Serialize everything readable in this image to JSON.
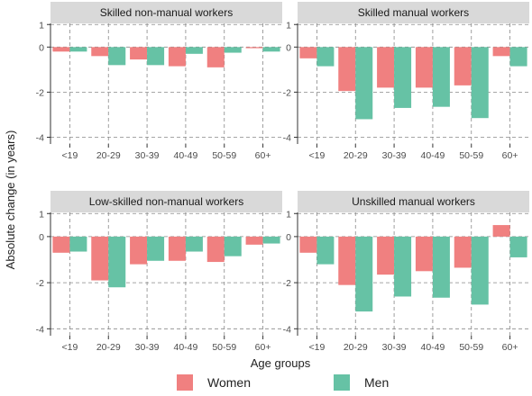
{
  "chart_data": {
    "type": "bar",
    "ylabel": "Absolute change (in years)",
    "xlabel": "Age groups",
    "categories": [
      "<19",
      "20-29",
      "30-39",
      "40-49",
      "50-59",
      "60+"
    ],
    "yticks": [
      1,
      0,
      -2,
      -4
    ],
    "ylim": [
      -4.3,
      1.05
    ],
    "grid": "dashed",
    "legend_position": "bottom",
    "colors": {
      "Women": "#f08080",
      "Men": "#66c2a5",
      "strip": "#d9d9d9",
      "grid": "#888888"
    },
    "panels": [
      {
        "title": "Skilled non-manual workers",
        "series": [
          {
            "name": "Women",
            "values": [
              -0.2,
              -0.4,
              -0.55,
              -0.85,
              -0.9,
              -0.05
            ]
          },
          {
            "name": "Men",
            "values": [
              -0.2,
              -0.8,
              -0.8,
              -0.3,
              -0.25,
              -0.2
            ]
          }
        ]
      },
      {
        "title": "Skilled manual workers",
        "series": [
          {
            "name": "Women",
            "values": [
              -0.5,
              -1.95,
              -1.8,
              -1.8,
              -1.7,
              -0.4
            ]
          },
          {
            "name": "Men",
            "values": [
              -0.85,
              -3.2,
              -2.7,
              -2.65,
              -3.15,
              -0.85
            ]
          }
        ]
      },
      {
        "title": "Low-skilled non-manual workers",
        "series": [
          {
            "name": "Women",
            "values": [
              -0.7,
              -1.9,
              -1.2,
              -1.05,
              -1.1,
              -0.35
            ]
          },
          {
            "name": "Men",
            "values": [
              -0.65,
              -2.2,
              -1.05,
              -0.65,
              -0.85,
              -0.3
            ]
          }
        ]
      },
      {
        "title": "Unskilled manual workers",
        "series": [
          {
            "name": "Women",
            "values": [
              -0.7,
              -2.1,
              -1.65,
              -1.5,
              -1.35,
              0.5
            ]
          },
          {
            "name": "Men",
            "values": [
              -1.2,
              -3.25,
              -2.6,
              -2.65,
              -2.95,
              -0.9
            ]
          }
        ]
      }
    ]
  },
  "legend": {
    "women_label": "Women",
    "men_label": "Men"
  }
}
